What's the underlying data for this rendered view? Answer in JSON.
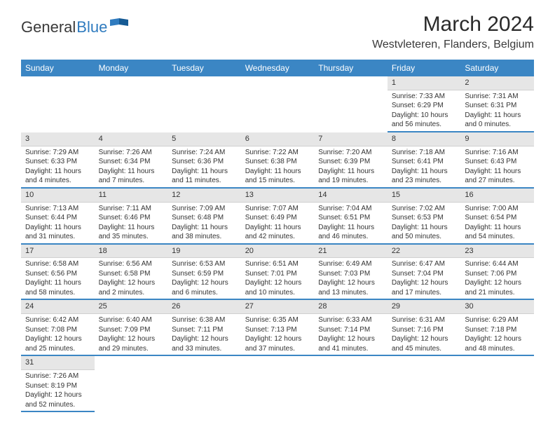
{
  "brand": {
    "name_part1": "General",
    "name_part2": "Blue"
  },
  "title": "March 2024",
  "location": "Westvleteren, Flanders, Belgium",
  "colors": {
    "header_bg": "#3b86c4",
    "header_text": "#ffffff",
    "daynum_bg": "#e6e6e6",
    "cell_border": "#3b86c4",
    "text": "#333333",
    "logo_blue": "#2f7bbf"
  },
  "fonts": {
    "title_size": 30,
    "location_size": 16,
    "header_size": 12,
    "cell_size": 10
  },
  "weekdays": [
    "Sunday",
    "Monday",
    "Tuesday",
    "Wednesday",
    "Thursday",
    "Friday",
    "Saturday"
  ],
  "weeks": [
    [
      null,
      null,
      null,
      null,
      null,
      {
        "n": "1",
        "sr": "Sunrise: 7:33 AM",
        "ss": "Sunset: 6:29 PM",
        "dl": "Daylight: 10 hours and 56 minutes."
      },
      {
        "n": "2",
        "sr": "Sunrise: 7:31 AM",
        "ss": "Sunset: 6:31 PM",
        "dl": "Daylight: 11 hours and 0 minutes."
      }
    ],
    [
      {
        "n": "3",
        "sr": "Sunrise: 7:29 AM",
        "ss": "Sunset: 6:33 PM",
        "dl": "Daylight: 11 hours and 4 minutes."
      },
      {
        "n": "4",
        "sr": "Sunrise: 7:26 AM",
        "ss": "Sunset: 6:34 PM",
        "dl": "Daylight: 11 hours and 7 minutes."
      },
      {
        "n": "5",
        "sr": "Sunrise: 7:24 AM",
        "ss": "Sunset: 6:36 PM",
        "dl": "Daylight: 11 hours and 11 minutes."
      },
      {
        "n": "6",
        "sr": "Sunrise: 7:22 AM",
        "ss": "Sunset: 6:38 PM",
        "dl": "Daylight: 11 hours and 15 minutes."
      },
      {
        "n": "7",
        "sr": "Sunrise: 7:20 AM",
        "ss": "Sunset: 6:39 PM",
        "dl": "Daylight: 11 hours and 19 minutes."
      },
      {
        "n": "8",
        "sr": "Sunrise: 7:18 AM",
        "ss": "Sunset: 6:41 PM",
        "dl": "Daylight: 11 hours and 23 minutes."
      },
      {
        "n": "9",
        "sr": "Sunrise: 7:16 AM",
        "ss": "Sunset: 6:43 PM",
        "dl": "Daylight: 11 hours and 27 minutes."
      }
    ],
    [
      {
        "n": "10",
        "sr": "Sunrise: 7:13 AM",
        "ss": "Sunset: 6:44 PM",
        "dl": "Daylight: 11 hours and 31 minutes."
      },
      {
        "n": "11",
        "sr": "Sunrise: 7:11 AM",
        "ss": "Sunset: 6:46 PM",
        "dl": "Daylight: 11 hours and 35 minutes."
      },
      {
        "n": "12",
        "sr": "Sunrise: 7:09 AM",
        "ss": "Sunset: 6:48 PM",
        "dl": "Daylight: 11 hours and 38 minutes."
      },
      {
        "n": "13",
        "sr": "Sunrise: 7:07 AM",
        "ss": "Sunset: 6:49 PM",
        "dl": "Daylight: 11 hours and 42 minutes."
      },
      {
        "n": "14",
        "sr": "Sunrise: 7:04 AM",
        "ss": "Sunset: 6:51 PM",
        "dl": "Daylight: 11 hours and 46 minutes."
      },
      {
        "n": "15",
        "sr": "Sunrise: 7:02 AM",
        "ss": "Sunset: 6:53 PM",
        "dl": "Daylight: 11 hours and 50 minutes."
      },
      {
        "n": "16",
        "sr": "Sunrise: 7:00 AM",
        "ss": "Sunset: 6:54 PM",
        "dl": "Daylight: 11 hours and 54 minutes."
      }
    ],
    [
      {
        "n": "17",
        "sr": "Sunrise: 6:58 AM",
        "ss": "Sunset: 6:56 PM",
        "dl": "Daylight: 11 hours and 58 minutes."
      },
      {
        "n": "18",
        "sr": "Sunrise: 6:56 AM",
        "ss": "Sunset: 6:58 PM",
        "dl": "Daylight: 12 hours and 2 minutes."
      },
      {
        "n": "19",
        "sr": "Sunrise: 6:53 AM",
        "ss": "Sunset: 6:59 PM",
        "dl": "Daylight: 12 hours and 6 minutes."
      },
      {
        "n": "20",
        "sr": "Sunrise: 6:51 AM",
        "ss": "Sunset: 7:01 PM",
        "dl": "Daylight: 12 hours and 10 minutes."
      },
      {
        "n": "21",
        "sr": "Sunrise: 6:49 AM",
        "ss": "Sunset: 7:03 PM",
        "dl": "Daylight: 12 hours and 13 minutes."
      },
      {
        "n": "22",
        "sr": "Sunrise: 6:47 AM",
        "ss": "Sunset: 7:04 PM",
        "dl": "Daylight: 12 hours and 17 minutes."
      },
      {
        "n": "23",
        "sr": "Sunrise: 6:44 AM",
        "ss": "Sunset: 7:06 PM",
        "dl": "Daylight: 12 hours and 21 minutes."
      }
    ],
    [
      {
        "n": "24",
        "sr": "Sunrise: 6:42 AM",
        "ss": "Sunset: 7:08 PM",
        "dl": "Daylight: 12 hours and 25 minutes."
      },
      {
        "n": "25",
        "sr": "Sunrise: 6:40 AM",
        "ss": "Sunset: 7:09 PM",
        "dl": "Daylight: 12 hours and 29 minutes."
      },
      {
        "n": "26",
        "sr": "Sunrise: 6:38 AM",
        "ss": "Sunset: 7:11 PM",
        "dl": "Daylight: 12 hours and 33 minutes."
      },
      {
        "n": "27",
        "sr": "Sunrise: 6:35 AM",
        "ss": "Sunset: 7:13 PM",
        "dl": "Daylight: 12 hours and 37 minutes."
      },
      {
        "n": "28",
        "sr": "Sunrise: 6:33 AM",
        "ss": "Sunset: 7:14 PM",
        "dl": "Daylight: 12 hours and 41 minutes."
      },
      {
        "n": "29",
        "sr": "Sunrise: 6:31 AM",
        "ss": "Sunset: 7:16 PM",
        "dl": "Daylight: 12 hours and 45 minutes."
      },
      {
        "n": "30",
        "sr": "Sunrise: 6:29 AM",
        "ss": "Sunset: 7:18 PM",
        "dl": "Daylight: 12 hours and 48 minutes."
      }
    ],
    [
      {
        "n": "31",
        "sr": "Sunrise: 7:26 AM",
        "ss": "Sunset: 8:19 PM",
        "dl": "Daylight: 12 hours and 52 minutes."
      },
      null,
      null,
      null,
      null,
      null,
      null
    ]
  ]
}
